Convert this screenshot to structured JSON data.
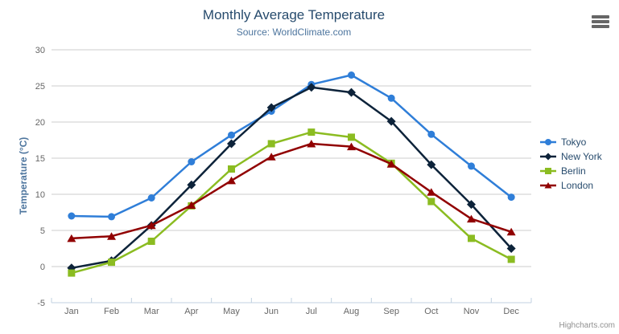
{
  "export_menu": {
    "icon": "hamburger-menu-icon"
  },
  "credits": {
    "label": "Highcharts.com"
  },
  "chart_data": {
    "type": "line",
    "title": "Monthly Average Temperature",
    "subtitle": "Source: WorldClimate.com",
    "xlabel": "",
    "ylabel": "Temperature (°C)",
    "categories": [
      "Jan",
      "Feb",
      "Mar",
      "Apr",
      "May",
      "Jun",
      "Jul",
      "Aug",
      "Sep",
      "Oct",
      "Nov",
      "Dec"
    ],
    "ylim": [
      -5,
      30
    ],
    "yticks": [
      -5,
      0,
      5,
      10,
      15,
      20,
      25,
      30
    ],
    "grid": "horizontal",
    "legend_position": "right",
    "series": [
      {
        "name": "Tokyo",
        "color": "#2f7ed8",
        "marker": "circle",
        "values": [
          7.0,
          6.9,
          9.5,
          14.5,
          18.2,
          21.5,
          25.2,
          26.5,
          23.3,
          18.3,
          13.9,
          9.6
        ]
      },
      {
        "name": "New York",
        "color": "#0d233a",
        "marker": "diamond",
        "values": [
          -0.2,
          0.8,
          5.7,
          11.3,
          17.0,
          22.0,
          24.8,
          24.1,
          20.1,
          14.1,
          8.6,
          2.5
        ]
      },
      {
        "name": "Berlin",
        "color": "#8bbc21",
        "marker": "square",
        "values": [
          -0.9,
          0.6,
          3.5,
          8.4,
          13.5,
          17.0,
          18.6,
          17.9,
          14.3,
          9.0,
          3.9,
          1.0
        ]
      },
      {
        "name": "London",
        "color": "#910000",
        "marker": "triangle",
        "values": [
          3.9,
          4.2,
          5.7,
          8.5,
          11.9,
          15.2,
          17.0,
          16.6,
          14.2,
          10.3,
          6.6,
          4.8
        ]
      }
    ],
    "colors": {
      "grid_line": "#cccccc",
      "axis_line": "#c0d0e0",
      "tick_label": "#666666",
      "axis_title": "#4d759e",
      "title_text": "#274b6d",
      "legend_text": "#274b6d",
      "credits_text": "#909090"
    }
  }
}
